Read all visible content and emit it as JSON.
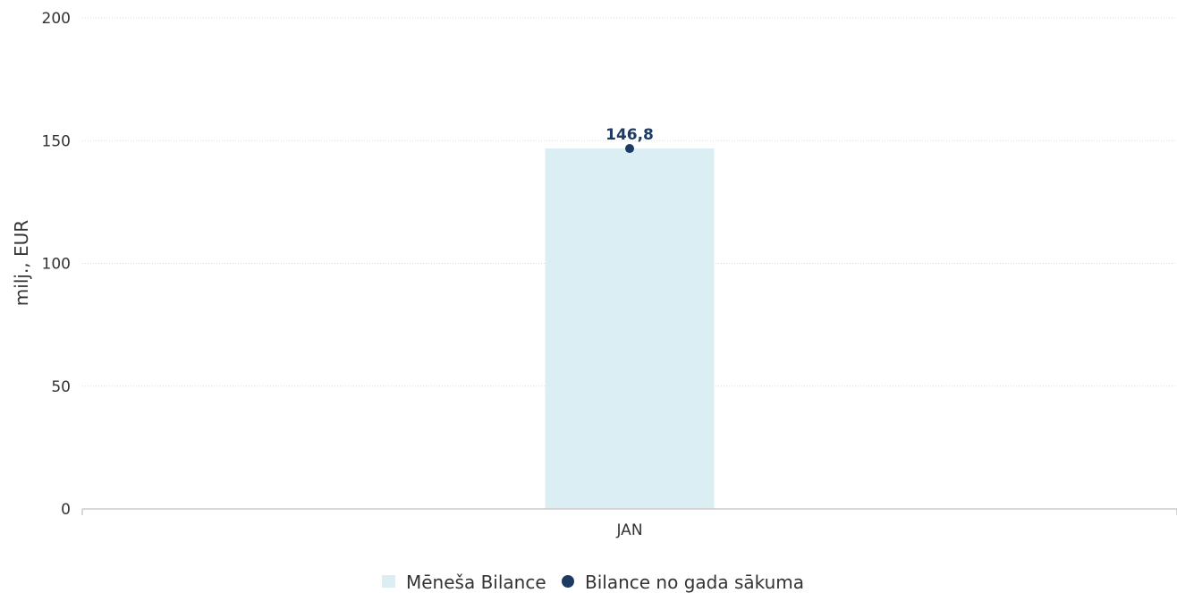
{
  "chart_data": {
    "type": "bar",
    "categories": [
      "JAN"
    ],
    "series": [
      {
        "name": "Mēneša Bilance",
        "kind": "bar",
        "values": [
          146.8
        ],
        "color": "#dbeef3"
      },
      {
        "name": "Bilance no gada sākuma",
        "kind": "point",
        "values": [
          146.8
        ],
        "color": "#1d3a63"
      }
    ],
    "data_labels": [
      "146,8"
    ],
    "ylabel": "milj., EUR",
    "xlabel": "",
    "ylim": [
      0,
      200
    ],
    "yticks": [
      0,
      50,
      100,
      150,
      200
    ],
    "ytick_labels": [
      "0",
      "50",
      "100",
      "150",
      "200"
    ],
    "grid": true,
    "legend_position": "bottom-center"
  }
}
